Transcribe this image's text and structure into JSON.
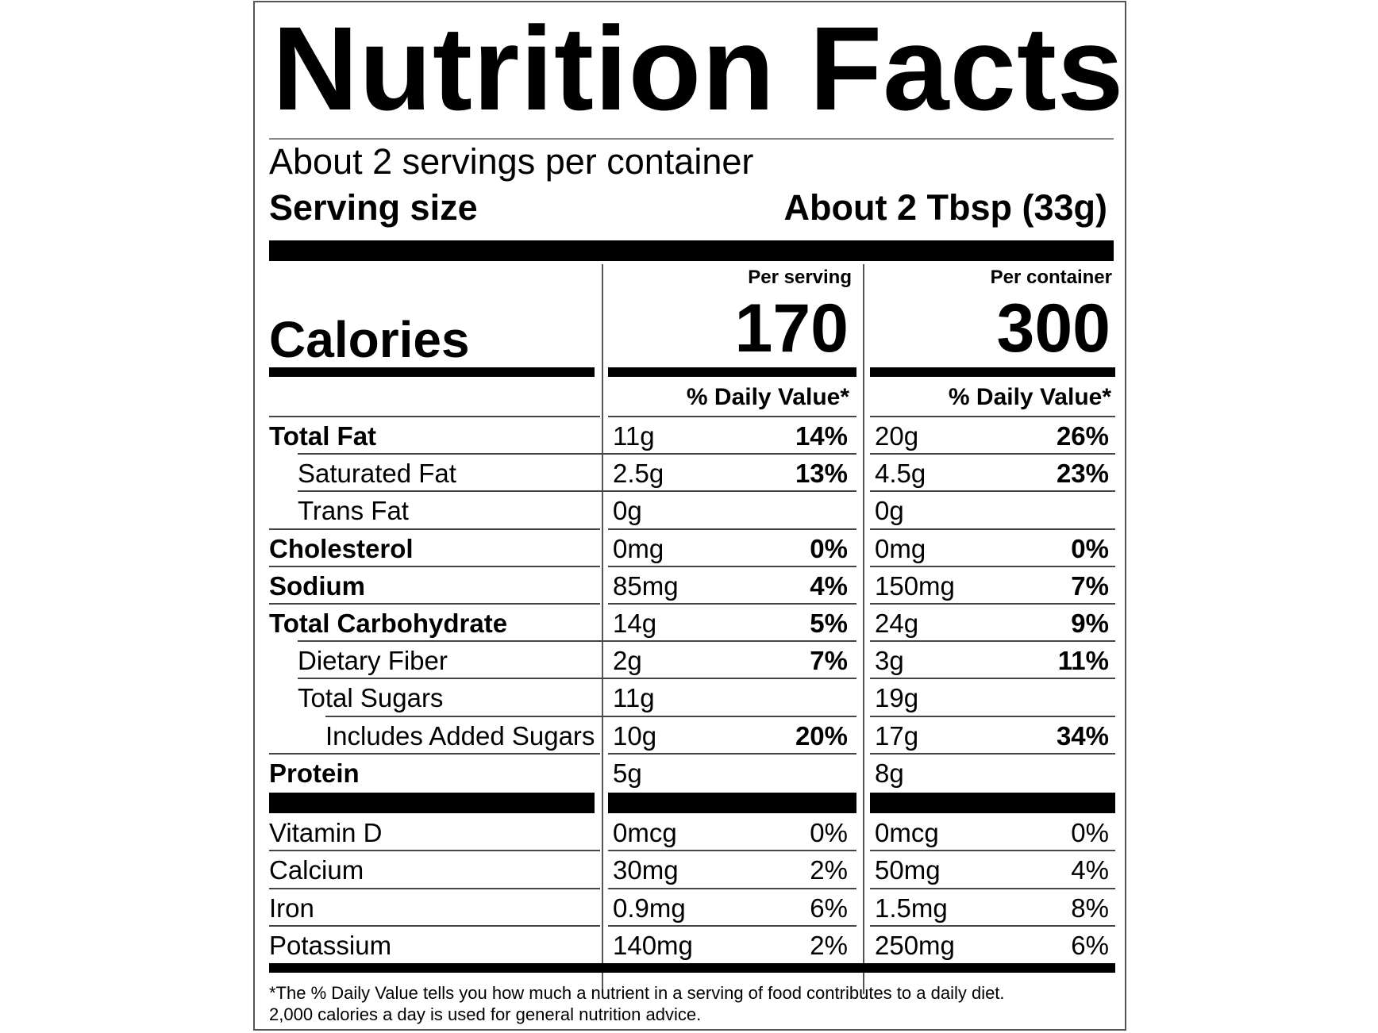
{
  "title": "Nutrition Facts",
  "servings_per_container": "About 2 servings per container",
  "serving_size": {
    "label": "Serving size",
    "value": "About 2 Tbsp (33g)"
  },
  "columns": {
    "per_serving": "Per serving",
    "per_container": "Per container"
  },
  "calories": {
    "label": "Calories",
    "per_serving": "170",
    "per_container": "300"
  },
  "daily_value_header": "% Daily Value*",
  "nutrients": [
    {
      "name": "Total Fat",
      "bold": true,
      "indent": 0,
      "serving_amount": "11g",
      "serving_dv": "14%",
      "container_amount": "20g",
      "container_dv": "26%"
    },
    {
      "name": "Saturated Fat",
      "bold": false,
      "indent": 1,
      "serving_amount": "2.5g",
      "serving_dv": "13%",
      "container_amount": "4.5g",
      "container_dv": "23%"
    },
    {
      "name": "Trans Fat",
      "bold": false,
      "indent": 1,
      "serving_amount": "0g",
      "serving_dv": "",
      "container_amount": "0g",
      "container_dv": ""
    },
    {
      "name": "Cholesterol",
      "bold": true,
      "indent": 0,
      "serving_amount": "0mg",
      "serving_dv": "0%",
      "container_amount": "0mg",
      "container_dv": "0%"
    },
    {
      "name": "Sodium",
      "bold": true,
      "indent": 0,
      "serving_amount": "85mg",
      "serving_dv": "4%",
      "container_amount": "150mg",
      "container_dv": "7%"
    },
    {
      "name": "Total Carbohydrate",
      "bold": true,
      "indent": 0,
      "serving_amount": "14g",
      "serving_dv": "5%",
      "container_amount": "24g",
      "container_dv": "9%"
    },
    {
      "name": "Dietary Fiber",
      "bold": false,
      "indent": 1,
      "serving_amount": "2g",
      "serving_dv": "7%",
      "container_amount": "3g",
      "container_dv": "11%"
    },
    {
      "name": "Total Sugars",
      "bold": false,
      "indent": 1,
      "serving_amount": "11g",
      "serving_dv": "",
      "container_amount": "19g",
      "container_dv": ""
    },
    {
      "name": "Includes Added Sugars",
      "bold": false,
      "indent": 2,
      "serving_amount": "10g",
      "serving_dv": "20%",
      "container_amount": "17g",
      "container_dv": "34%"
    },
    {
      "name": "Protein",
      "bold": true,
      "indent": 0,
      "serving_amount": "5g",
      "serving_dv": "",
      "container_amount": "8g",
      "container_dv": ""
    }
  ],
  "vitamins": [
    {
      "name": "Vitamin D",
      "serving_amount": "0mcg",
      "serving_dv": "0%",
      "container_amount": "0mcg",
      "container_dv": "0%"
    },
    {
      "name": "Calcium",
      "serving_amount": "30mg",
      "serving_dv": "2%",
      "container_amount": "50mg",
      "container_dv": "4%"
    },
    {
      "name": "Iron",
      "serving_amount": "0.9mg",
      "serving_dv": "6%",
      "container_amount": "1.5mg",
      "container_dv": "8%"
    },
    {
      "name": "Potassium",
      "serving_amount": "140mg",
      "serving_dv": "2%",
      "container_amount": "250mg",
      "container_dv": "6%"
    }
  ],
  "footnote": {
    "line1": "*The % Daily Value tells you how much a nutrient in a serving of food contributes to a daily diet.",
    "line2": "2,000 calories a day is used for general nutrition advice."
  }
}
